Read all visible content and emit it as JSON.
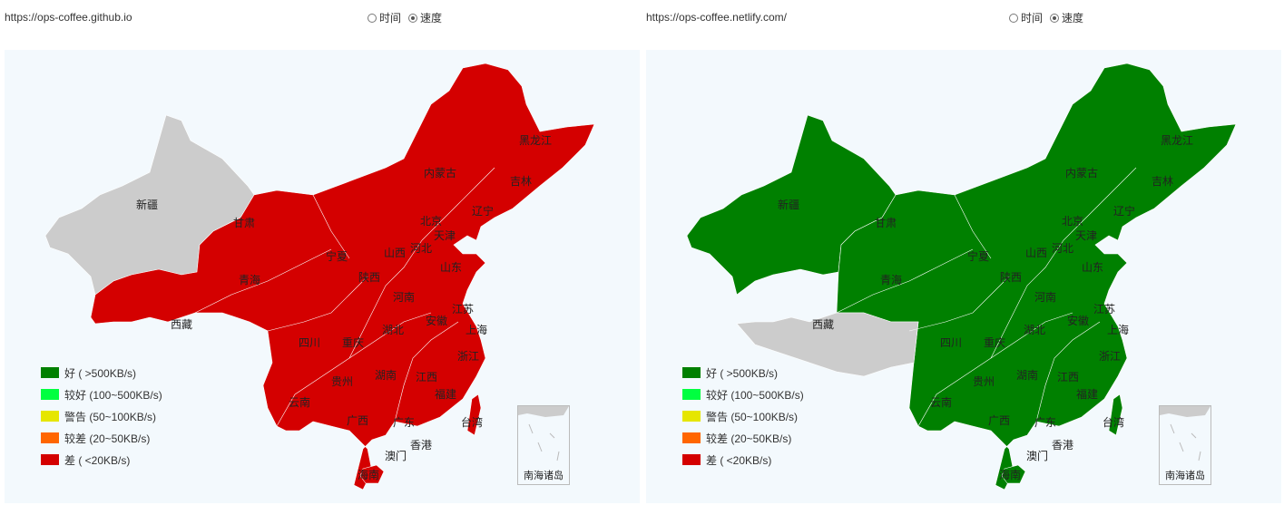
{
  "panels": [
    {
      "url": "https://ops-coffee.github.io",
      "radio_time": "时间",
      "radio_speed": "速度",
      "selected": "speed",
      "main_color": "#d40000",
      "gray_regions": [
        "新疆"
      ],
      "inset_label": "南海诸岛"
    },
    {
      "url": "https://ops-coffee.netlify.com/",
      "radio_time": "时间",
      "radio_speed": "速度",
      "selected": "speed",
      "main_color": "#008000",
      "gray_regions": [
        "西藏"
      ],
      "inset_label": "南海诸岛"
    }
  ],
  "legend": [
    {
      "label": "好 ( >500KB/s)",
      "color": "#008000"
    },
    {
      "label": "较好 (100~500KB/s)",
      "color": "#00ff40"
    },
    {
      "label": "警告 (50~100KB/s)",
      "color": "#e6e600"
    },
    {
      "label": "较差 (20~50KB/s)",
      "color": "#ff6600"
    },
    {
      "label": "差 ( <20KB/s)",
      "color": "#d40000"
    }
  ],
  "provinces": [
    "新疆",
    "甘肃",
    "青海",
    "西藏",
    "宁夏",
    "陕西",
    "四川",
    "重庆",
    "云南",
    "贵州",
    "广西",
    "广东",
    "湖南",
    "湖北",
    "河南",
    "山西",
    "河北",
    "北京",
    "天津",
    "山东",
    "江苏",
    "上海",
    "安徽",
    "浙江",
    "江西",
    "福建",
    "台湾",
    "香港",
    "澳门",
    "海南",
    "辽宁",
    "吉林",
    "黑龙江",
    "内蒙古"
  ]
}
